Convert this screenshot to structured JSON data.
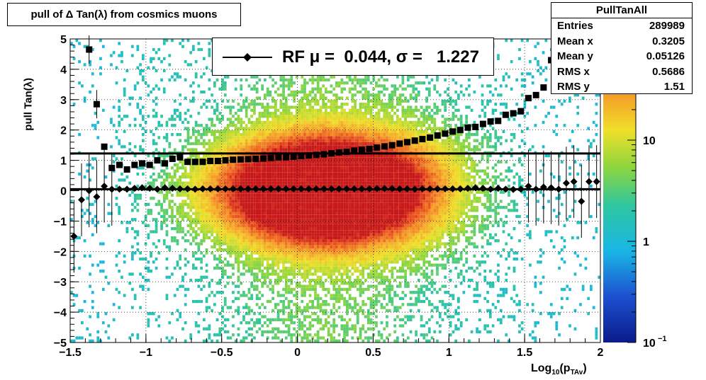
{
  "title": "pull of Δ Tan(λ) from cosmics muons",
  "stats": {
    "name": "PullTanAll",
    "rows": [
      {
        "label": "Entries",
        "value": "289989"
      },
      {
        "label": "Mean x",
        "value": "0.3205"
      },
      {
        "label": "Mean y",
        "value": "0.05126"
      },
      {
        "label": "RMS x",
        "value": "0.5686"
      },
      {
        "label": "RMS y",
        "value": "1.51"
      }
    ]
  },
  "legend": {
    "text": "RF μ =  0.044, σ =   1.227"
  },
  "chart_data": {
    "type": "heatmap",
    "title": "pull of Δ Tan(λ) from cosmics muons",
    "xlabel": "Log10(pTAv)",
    "xlabel_parts": {
      "main": "Log",
      "sub1": "10",
      "open": "(p",
      "sub2": "TAv",
      "close": ")"
    },
    "ylabel": "pull Tan(λ)",
    "xlim": [
      -1.5,
      2
    ],
    "ylim": [
      -5,
      5
    ],
    "log_z": true,
    "zlim": [
      0.1,
      100
    ],
    "x_ticks": [
      "−1.5",
      "−1",
      "−0.5",
      "0",
      "0.5",
      "1",
      "1.5",
      "2"
    ],
    "x_tick_values": [
      -1.5,
      -1,
      -0.5,
      0,
      0.5,
      1,
      1.5,
      2
    ],
    "y_ticks": [
      "−5",
      "−4",
      "−3",
      "−2",
      "−1",
      "0",
      "1",
      "2",
      "3",
      "4",
      "5"
    ],
    "y_tick_values": [
      -5,
      -4,
      -3,
      -2,
      -1,
      0,
      1,
      2,
      3,
      4,
      5
    ],
    "z_ticks": [
      {
        "value": 10,
        "label": "10"
      },
      {
        "value": 1,
        "label": "1"
      },
      {
        "value": 0.1,
        "label": "10",
        "sup": "−1"
      }
    ],
    "grid": true,
    "colors": {
      "line": "#000000",
      "palette_low": "#1a1a8c",
      "palette_high": "#c8191a"
    },
    "mean_markers": {
      "x": [
        -1.475,
        -1.425,
        -1.375,
        -1.325,
        -1.275,
        -1.225,
        -1.175,
        -1.125,
        -1.075,
        -1.025,
        -0.975,
        -0.925,
        -0.875,
        -0.825,
        -0.775,
        -0.725,
        -0.675,
        -0.625,
        -0.575,
        -0.525,
        -0.475,
        -0.425,
        -0.375,
        -0.325,
        -0.275,
        -0.225,
        -0.175,
        -0.125,
        -0.075,
        -0.025,
        0.025,
        0.075,
        0.125,
        0.175,
        0.225,
        0.275,
        0.325,
        0.375,
        0.425,
        0.475,
        0.525,
        0.575,
        0.625,
        0.675,
        0.725,
        0.775,
        0.825,
        0.875,
        0.925,
        0.975,
        1.025,
        1.075,
        1.125,
        1.175,
        1.225,
        1.275,
        1.325,
        1.375,
        1.425,
        1.475,
        1.525,
        1.575,
        1.625,
        1.675,
        1.725,
        1.775,
        1.825,
        1.875,
        1.925,
        1.975
      ],
      "y": [
        -1.5,
        -0.3,
        0.0,
        -0.2,
        0.15,
        0.05,
        0.05,
        0.05,
        0.08,
        0.1,
        0.08,
        0.05,
        0.1,
        0.08,
        0.06,
        0.06,
        0.05,
        0.06,
        0.06,
        0.06,
        0.06,
        0.06,
        0.06,
        0.06,
        0.06,
        0.06,
        0.06,
        0.06,
        0.06,
        0.06,
        0.06,
        0.06,
        0.06,
        0.06,
        0.06,
        0.06,
        0.06,
        0.06,
        0.06,
        0.06,
        0.07,
        0.07,
        0.07,
        0.06,
        0.06,
        0.05,
        0.06,
        0.06,
        0.06,
        0.06,
        0.06,
        0.06,
        0.08,
        0.1,
        0.08,
        0.05,
        0.08,
        0.05,
        0.04,
        0.05,
        0.15,
        0.05,
        0.12,
        0.1,
        0.05,
        0.25,
        0.3,
        -0.35,
        0.3,
        0.3
      ]
    },
    "rms_markers": {
      "x": [
        -1.375,
        -1.325,
        -1.275,
        -1.225,
        -1.175,
        -1.125,
        -1.075,
        -1.025,
        -0.975,
        -0.925,
        -0.875,
        -0.825,
        -0.775,
        -0.725,
        -0.675,
        -0.625,
        -0.575,
        -0.525,
        -0.475,
        -0.425,
        -0.375,
        -0.325,
        -0.275,
        -0.225,
        -0.175,
        -0.125,
        -0.075,
        -0.025,
        0.025,
        0.075,
        0.125,
        0.175,
        0.225,
        0.275,
        0.325,
        0.375,
        0.425,
        0.475,
        0.525,
        0.575,
        0.625,
        0.675,
        0.725,
        0.775,
        0.825,
        0.875,
        0.925,
        0.975,
        1.025,
        1.075,
        1.125,
        1.175,
        1.225,
        1.275,
        1.325,
        1.375,
        1.425,
        1.475,
        1.525,
        1.575,
        1.625,
        1.675,
        1.725
      ],
      "y": [
        4.65,
        2.85,
        1.45,
        0.75,
        0.85,
        0.7,
        0.85,
        0.9,
        0.85,
        1.0,
        0.9,
        1.05,
        1.1,
        0.95,
        0.95,
        0.95,
        0.98,
        0.98,
        1.0,
        1.02,
        1.03,
        1.04,
        1.05,
        1.06,
        1.08,
        1.1,
        1.1,
        1.12,
        1.14,
        1.16,
        1.18,
        1.2,
        1.23,
        1.26,
        1.28,
        1.32,
        1.35,
        1.38,
        1.42,
        1.46,
        1.5,
        1.55,
        1.6,
        1.65,
        1.7,
        1.75,
        1.82,
        1.88,
        1.95,
        2.0,
        2.08,
        2.1,
        2.2,
        2.28,
        2.3,
        2.5,
        2.55,
        2.62,
        3.05,
        3.15,
        3.4,
        4.3,
        4.55
      ]
    },
    "mean_line_y": 0.05,
    "rms_line_y": 1.227
  }
}
